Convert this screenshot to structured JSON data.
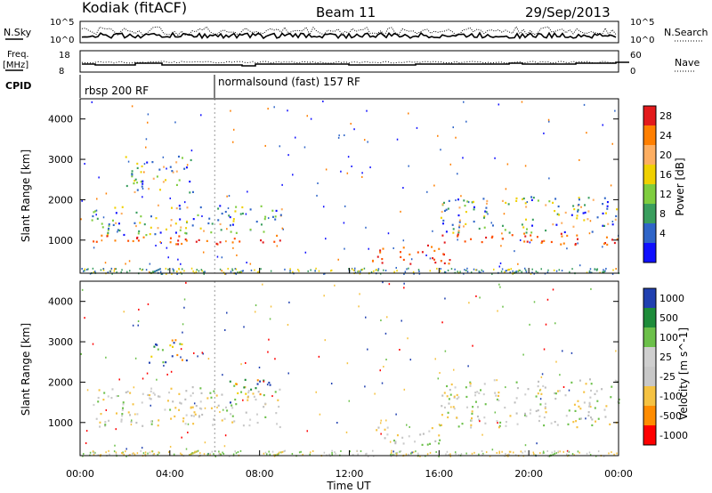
{
  "header": {
    "station": "Kodiak (fitACF)",
    "beam": "Beam 11",
    "date": "29/Sep/2013"
  },
  "summary_panels": {
    "nsky_label": "N.Sky",
    "nsearch_label": "N.Search",
    "nsky_ticks": [
      "10^5",
      "10^0"
    ],
    "nsearch_ticks": [
      "10^5",
      "10^0"
    ],
    "freq_label_1": "Freq.",
    "freq_label_2": "[MHz]",
    "freq_ticks": [
      "18",
      "8"
    ],
    "nave_label": "Nave",
    "nave_ticks": [
      "60",
      "0"
    ],
    "cpid_label": "CPID",
    "cpid_modes": [
      "rbsp 200 RF",
      "normalsound (fast) 157 RF"
    ]
  },
  "chart_data": [
    {
      "type": "heatmap",
      "panel": "power",
      "ylabel": "Slant Range [km]",
      "yticks": [
        1000,
        2000,
        3000,
        4000
      ],
      "ylim": [
        180,
        4500
      ],
      "xlim": [
        0,
        24
      ],
      "colorbar": {
        "label": "Power [dB]",
        "ticks": [
          "28",
          "24",
          "20",
          "16",
          "12",
          "8",
          "4"
        ],
        "colors": [
          "#e31a1c",
          "#ff7f00",
          "#fdae61",
          "#f0d000",
          "#7fcd3f",
          "#3a9e5e",
          "#2f65c8",
          "#1010ff"
        ]
      },
      "regions": [
        {
          "t0": 0.5,
          "t1": 9.0,
          "r0": 900,
          "r1": 1150,
          "level": "high"
        },
        {
          "t0": 0.5,
          "t1": 9.0,
          "r0": 1150,
          "r1": 1900,
          "level": "mid"
        },
        {
          "t0": 2.0,
          "t1": 5.0,
          "r0": 2200,
          "r1": 3100,
          "level": "mid"
        },
        {
          "t0": 13.0,
          "t1": 16.5,
          "r0": 400,
          "r1": 900,
          "level": "high"
        },
        {
          "t0": 16.0,
          "t1": 24.0,
          "r0": 900,
          "r1": 1200,
          "level": "high"
        },
        {
          "t0": 16.0,
          "t1": 24.0,
          "r0": 1200,
          "r1": 2100,
          "level": "mid"
        }
      ]
    },
    {
      "type": "heatmap",
      "panel": "velocity",
      "ylabel": "Slant Range [km]",
      "yticks": [
        1000,
        2000,
        3000,
        4000
      ],
      "ylim": [
        180,
        4500
      ],
      "xlim": [
        0,
        24
      ],
      "colorbar": {
        "label": "Velocity [m s^-1]",
        "ticks": [
          "1000",
          "500",
          "100",
          "25",
          "-25",
          "-100",
          "-500",
          "-1000"
        ],
        "colors": [
          "#2040b0",
          "#1e8c3a",
          "#6cc04a",
          "#cfcfcf",
          "#c8c8c8",
          "#f5c242",
          "#ff8c00",
          "#ff0000"
        ]
      },
      "regions": [
        {
          "t0": 0.5,
          "t1": 9.0,
          "r0": 900,
          "r1": 1900,
          "level": "low"
        },
        {
          "t0": 6.5,
          "t1": 8.5,
          "r0": 1500,
          "r1": 2100,
          "level": "pos"
        },
        {
          "t0": 3.0,
          "t1": 5.0,
          "r0": 2500,
          "r1": 3100,
          "level": "pos"
        },
        {
          "t0": 16.0,
          "t1": 24.0,
          "r0": 900,
          "r1": 2100,
          "level": "low"
        },
        {
          "t0": 13.0,
          "t1": 16.0,
          "r0": 400,
          "r1": 900,
          "level": "low"
        }
      ]
    }
  ],
  "time_axis": {
    "ticks": [
      "00:00",
      "04:00",
      "08:00",
      "12:00",
      "16:00",
      "20:00",
      "00:00"
    ],
    "label": "Time UT"
  }
}
